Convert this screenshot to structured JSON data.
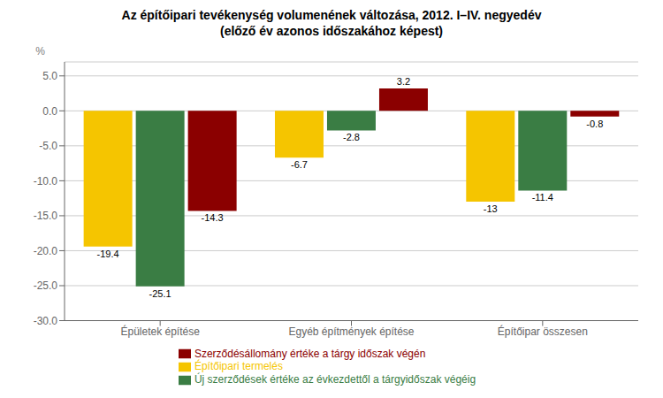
{
  "chart_data": {
    "type": "bar",
    "title": "Az építőipari tevékenység volumenének változása, 2012. I–IV. negyedév",
    "subtitle": "(előző év azonos időszakához képest)",
    "ylabel": "%",
    "categories": [
      "Épületek építése",
      "Egyéb építmények építése",
      "Építőipar összesen"
    ],
    "series": [
      {
        "name": "Építőipari termelés",
        "color": "#F5C500",
        "values": [
          -19.4,
          -6.7,
          -13.0
        ]
      },
      {
        "name": "Új szerződések értéke az évkezdettől a tárgyidőszak végéig",
        "color": "#3A7D44",
        "values": [
          -25.1,
          -2.8,
          -11.4
        ]
      },
      {
        "name": "Szerződésállomány értéke a tárgy időszak végén",
        "color": "#8B0000",
        "values": [
          -14.3,
          3.2,
          -0.8
        ]
      }
    ],
    "ylim": [
      -30.0,
      7.0
    ],
    "yticks": [
      {
        "value": 5.0,
        "label": "5.0"
      },
      {
        "value": 0.0,
        "label": "0.0"
      },
      {
        "value": -5.0,
        "label": "-5.0"
      },
      {
        "value": -10.0,
        "label": "-10.0"
      },
      {
        "value": -15.0,
        "label": "-15.0"
      },
      {
        "value": -20.0,
        "label": "-20.0"
      },
      {
        "value": -25.0,
        "label": "-25.0"
      },
      {
        "value": -30.0,
        "label": "-30.0"
      }
    ],
    "grid": true,
    "legend": "bottom",
    "data_labels": true
  }
}
